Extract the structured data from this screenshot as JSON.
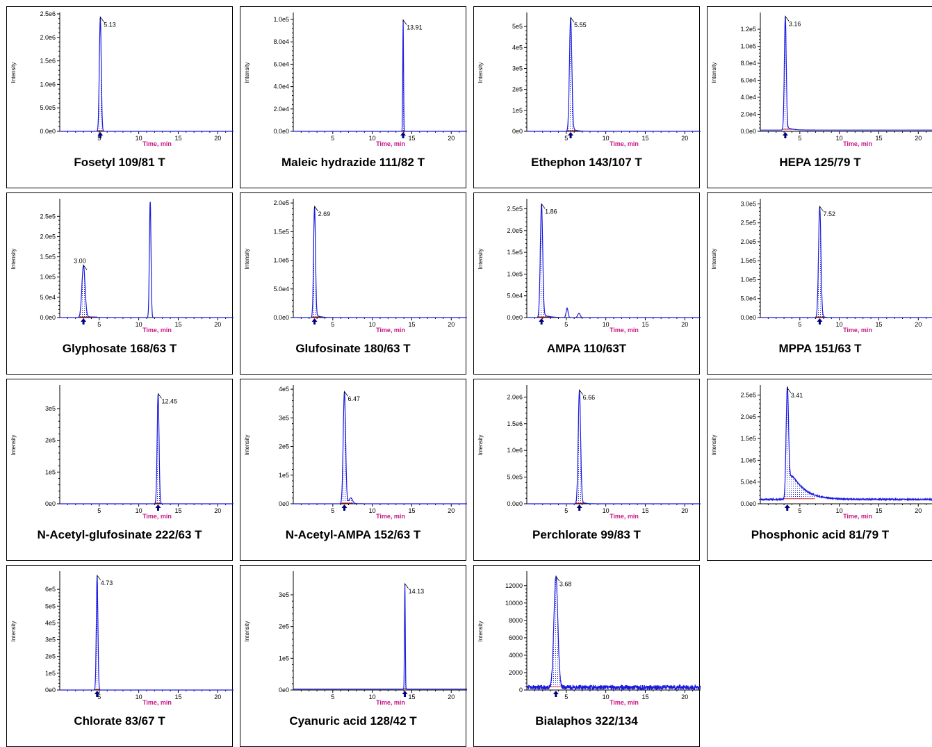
{
  "axis_labels": {
    "x": "Time, min",
    "y": "Intensity"
  },
  "colors": {
    "trace": "#1a1adf",
    "baseline": "#e03030",
    "marker": "#00007a",
    "xlabel": "#c71585"
  },
  "chart_data": [
    {
      "type": "line",
      "title": "Fosetyl  109/81 T",
      "xlim": [
        0,
        22
      ],
      "xticks": [
        5,
        10,
        15,
        20
      ],
      "ylim": [
        0,
        2500000
      ],
      "yticks": [
        {
          "v": 0,
          "l": "0.0e0"
        },
        {
          "v": 500000,
          "l": "5.0e5"
        },
        {
          "v": 1000000,
          "l": "1.0e6"
        },
        {
          "v": 1500000,
          "l": "1.5e6"
        },
        {
          "v": 2000000,
          "l": "2.0e6"
        },
        {
          "v": 2500000,
          "l": "2.5e6"
        }
      ],
      "peaks": [
        {
          "rt": 5.13,
          "h": 2420000,
          "w": 0.12,
          "label": "5.13",
          "shade": true
        }
      ],
      "baseline": 0,
      "noise": 0
    },
    {
      "type": "line",
      "title": "Maleic hydrazide 111/82 T",
      "xlim": [
        0,
        22
      ],
      "xticks": [
        5,
        10,
        15,
        20
      ],
      "ylim": [
        0,
        105000
      ],
      "yticks": [
        {
          "v": 0,
          "l": "0.0e0"
        },
        {
          "v": 20000,
          "l": "2.0e4"
        },
        {
          "v": 40000,
          "l": "4.0e4"
        },
        {
          "v": 60000,
          "l": "6.0e4"
        },
        {
          "v": 80000,
          "l": "8.0e4"
        },
        {
          "v": 100000,
          "l": "1.0e5"
        }
      ],
      "peaks": [
        {
          "rt": 13.91,
          "h": 99000,
          "w": 0.05,
          "label": "13.91",
          "shade": true
        }
      ],
      "baseline": 0,
      "noise": 0
    },
    {
      "type": "line",
      "title": "Ethephon 143/107 T",
      "xlim": [
        0,
        22
      ],
      "xticks": [
        5,
        10,
        15,
        20
      ],
      "ylim": [
        0,
        560000
      ],
      "yticks": [
        {
          "v": 0,
          "l": "0e0"
        },
        {
          "v": 100000,
          "l": "1e5"
        },
        {
          "v": 200000,
          "l": "2e5"
        },
        {
          "v": 300000,
          "l": "3e5"
        },
        {
          "v": 400000,
          "l": "4e5"
        },
        {
          "v": 500000,
          "l": "5e5"
        }
      ],
      "peaks": [
        {
          "rt": 5.55,
          "h": 540000,
          "w": 0.15,
          "label": "5.55",
          "shade": true,
          "tail": 0.5
        }
      ],
      "baseline": 0,
      "noise": 0
    },
    {
      "type": "line",
      "title": "HEPA 125/79 T",
      "xlim": [
        0,
        22
      ],
      "xticks": [
        5,
        10,
        15,
        20
      ],
      "ylim": [
        0,
        138000
      ],
      "yticks": [
        {
          "v": 0,
          "l": "0.0e0"
        },
        {
          "v": 20000,
          "l": "2.0e4"
        },
        {
          "v": 40000,
          "l": "4.0e4"
        },
        {
          "v": 60000,
          "l": "6.0e4"
        },
        {
          "v": 80000,
          "l": "8.0e4"
        },
        {
          "v": 100000,
          "l": "1.0e5"
        },
        {
          "v": 120000,
          "l": "1.2e5"
        }
      ],
      "peaks": [
        {
          "rt": 3.16,
          "h": 133000,
          "w": 0.12,
          "label": "3.16",
          "shade": true,
          "tail": 0.6
        }
      ],
      "baseline": 1500,
      "noise": 0
    },
    {
      "type": "line",
      "title": "Glyphosate 168/63 T",
      "xlim": [
        0,
        22
      ],
      "xticks": [
        5,
        10,
        15,
        20
      ],
      "ylim": [
        0,
        290000
      ],
      "yticks": [
        {
          "v": 0,
          "l": "0.0e0"
        },
        {
          "v": 50000,
          "l": "5.0e4"
        },
        {
          "v": 100000,
          "l": "1.0e5"
        },
        {
          "v": 150000,
          "l": "1.5e5"
        },
        {
          "v": 200000,
          "l": "2.0e5"
        },
        {
          "v": 250000,
          "l": "2.5e5"
        }
      ],
      "peaks": [
        {
          "rt": 3.0,
          "h": 128000,
          "w": 0.2,
          "label": "3.00",
          "shade": true,
          "tail": 0.8
        },
        {
          "rt": 11.45,
          "h": 287000,
          "w": 0.1,
          "label": "",
          "shade": false
        }
      ],
      "baseline": 0,
      "noise": 0
    },
    {
      "type": "line",
      "title": "Glufosinate  180/63 T",
      "xlim": [
        0,
        22
      ],
      "xticks": [
        5,
        10,
        15,
        20
      ],
      "ylim": [
        0,
        205000
      ],
      "yticks": [
        {
          "v": 0,
          "l": "0.0e0"
        },
        {
          "v": 50000,
          "l": "5.0e4"
        },
        {
          "v": 100000,
          "l": "1.0e5"
        },
        {
          "v": 150000,
          "l": "1.5e5"
        },
        {
          "v": 200000,
          "l": "2.0e5"
        }
      ],
      "peaks": [
        {
          "rt": 2.69,
          "h": 193000,
          "w": 0.12,
          "label": "2.69",
          "shade": true,
          "tail": 0.5
        }
      ],
      "baseline": 0,
      "noise": 0
    },
    {
      "type": "line",
      "title": "AMPA 110/63T",
      "xlim": [
        0,
        22
      ],
      "xticks": [
        5,
        10,
        15,
        20
      ],
      "ylim": [
        0,
        270000
      ],
      "yticks": [
        {
          "v": 0,
          "l": "0.0e0"
        },
        {
          "v": 50000,
          "l": "5.0e4"
        },
        {
          "v": 100000,
          "l": "1.0e5"
        },
        {
          "v": 150000,
          "l": "1.5e5"
        },
        {
          "v": 200000,
          "l": "2.0e5"
        },
        {
          "v": 250000,
          "l": "2.5e5"
        }
      ],
      "peaks": [
        {
          "rt": 1.86,
          "h": 260000,
          "w": 0.15,
          "label": "1.86",
          "shade": true,
          "tail": 0.7
        },
        {
          "rt": 5.1,
          "h": 22000,
          "w": 0.12,
          "label": "",
          "shade": false
        },
        {
          "rt": 6.6,
          "h": 10000,
          "w": 0.15,
          "label": "",
          "shade": false
        }
      ],
      "baseline": 0,
      "noise": 0
    },
    {
      "type": "line",
      "title": "MPPA 151/63 T",
      "xlim": [
        0,
        22
      ],
      "xticks": [
        5,
        10,
        15,
        20
      ],
      "ylim": [
        0,
        310000
      ],
      "yticks": [
        {
          "v": 0,
          "l": "0.0e0"
        },
        {
          "v": 50000,
          "l": "5.0e4"
        },
        {
          "v": 100000,
          "l": "1.0e5"
        },
        {
          "v": 150000,
          "l": "1.5e5"
        },
        {
          "v": 200000,
          "l": "2.0e5"
        },
        {
          "v": 250000,
          "l": "2.5e5"
        },
        {
          "v": 300000,
          "l": "3.0e5"
        }
      ],
      "peaks": [
        {
          "rt": 7.52,
          "h": 292000,
          "w": 0.15,
          "label": "7.52",
          "shade": true,
          "tail": 0.3
        }
      ],
      "baseline": 0,
      "noise": 0
    },
    {
      "type": "line",
      "title": "N-Acetyl-glufosinate 222/63 T",
      "xlim": [
        0,
        22
      ],
      "xticks": [
        5,
        10,
        15,
        20
      ],
      "ylim": [
        0,
        370000
      ],
      "yticks": [
        {
          "v": 0,
          "l": "0e0"
        },
        {
          "v": 100000,
          "l": "1e5"
        },
        {
          "v": 200000,
          "l": "2e5"
        },
        {
          "v": 300000,
          "l": "3e5"
        }
      ],
      "peaks": [
        {
          "rt": 12.45,
          "h": 345000,
          "w": 0.12,
          "label": "12.45",
          "shade": true
        }
      ],
      "baseline": 0,
      "noise": 0
    },
    {
      "type": "line",
      "title": "N-Acetyl-AMPA 152/63 T",
      "xlim": [
        0,
        22
      ],
      "xticks": [
        5,
        10,
        15,
        20
      ],
      "ylim": [
        0,
        410000
      ],
      "yticks": [
        {
          "v": 0,
          "l": "0e0"
        },
        {
          "v": 100000,
          "l": "1e5"
        },
        {
          "v": 200000,
          "l": "2e5"
        },
        {
          "v": 300000,
          "l": "3e5"
        },
        {
          "v": 400000,
          "l": "4e5"
        }
      ],
      "peaks": [
        {
          "rt": 6.47,
          "h": 390000,
          "w": 0.15,
          "label": "6.47",
          "shade": true,
          "tail": 0.5
        },
        {
          "rt": 7.3,
          "h": 18000,
          "w": 0.2,
          "label": "",
          "shade": false
        }
      ],
      "baseline": 0,
      "noise": 0
    },
    {
      "type": "line",
      "title": "Perchlorate 99/83 T",
      "xlim": [
        0,
        22
      ],
      "xticks": [
        5,
        10,
        15,
        20
      ],
      "ylim": [
        0,
        2200000
      ],
      "yticks": [
        {
          "v": 0,
          "l": "0.0e0"
        },
        {
          "v": 500000,
          "l": "5.0e5"
        },
        {
          "v": 1000000,
          "l": "1.0e6"
        },
        {
          "v": 1500000,
          "l": "1.5e6"
        },
        {
          "v": 2000000,
          "l": "2.0e6"
        }
      ],
      "peaks": [
        {
          "rt": 6.66,
          "h": 2120000,
          "w": 0.15,
          "label": "6.66",
          "shade": true,
          "tail": 0.4
        }
      ],
      "baseline": 0,
      "noise": 0
    },
    {
      "type": "line",
      "title": "Phosphonic acid 81/79 T",
      "xlim": [
        0,
        22
      ],
      "xticks": [
        5,
        10,
        15,
        20
      ],
      "ylim": [
        0,
        270000
      ],
      "yticks": [
        {
          "v": 0,
          "l": "0.0e0"
        },
        {
          "v": 50000,
          "l": "5.0e4"
        },
        {
          "v": 100000,
          "l": "1.0e5"
        },
        {
          "v": 150000,
          "l": "1.5e5"
        },
        {
          "v": 200000,
          "l": "2.0e5"
        },
        {
          "v": 250000,
          "l": "2.5e5"
        }
      ],
      "peaks": [
        {
          "rt": 3.41,
          "h": 255000,
          "w": 0.15,
          "label": "3.41",
          "shade": true,
          "tail": 1.6,
          "tailfrac": 0.35
        }
      ],
      "baseline": 10000,
      "noise": 1500
    },
    {
      "type": "line",
      "title": "Chlorate 83/67 T",
      "xlim": [
        0,
        22
      ],
      "xticks": [
        5,
        10,
        15,
        20
      ],
      "ylim": [
        0,
        700000
      ],
      "yticks": [
        {
          "v": 0,
          "l": "0e0"
        },
        {
          "v": 100000,
          "l": "1e5"
        },
        {
          "v": 200000,
          "l": "2e5"
        },
        {
          "v": 300000,
          "l": "3e5"
        },
        {
          "v": 400000,
          "l": "4e5"
        },
        {
          "v": 500000,
          "l": "5e5"
        },
        {
          "v": 600000,
          "l": "6e5"
        }
      ],
      "peaks": [
        {
          "rt": 4.73,
          "h": 680000,
          "w": 0.1,
          "label": "4.73",
          "shade": true
        }
      ],
      "baseline": 0,
      "noise": 0
    },
    {
      "type": "line",
      "title": "Cyanuric acid 128/42 T",
      "xlim": [
        0,
        22
      ],
      "xticks": [
        5,
        10,
        15,
        20
      ],
      "ylim": [
        0,
        370000
      ],
      "yticks": [
        {
          "v": 0,
          "l": "0e0"
        },
        {
          "v": 100000,
          "l": "1e5"
        },
        {
          "v": 200000,
          "l": "2e5"
        },
        {
          "v": 300000,
          "l": "3e5"
        }
      ],
      "peaks": [
        {
          "rt": 14.13,
          "h": 330000,
          "w": 0.05,
          "label": "14.13",
          "shade": true
        }
      ],
      "baseline": 3000,
      "noise": 0
    },
    {
      "type": "line",
      "title": "Bialaphos 322/134",
      "xlim": [
        0,
        22
      ],
      "xticks": [
        5,
        10,
        15,
        20
      ],
      "ylim": [
        0,
        13500
      ],
      "yticks": [
        {
          "v": 0,
          "l": "0"
        },
        {
          "v": 2000,
          "l": "2000"
        },
        {
          "v": 4000,
          "l": "4000"
        },
        {
          "v": 6000,
          "l": "6000"
        },
        {
          "v": 8000,
          "l": "8000"
        },
        {
          "v": 10000,
          "l": "10000"
        },
        {
          "v": 12000,
          "l": "12000"
        }
      ],
      "peaks": [
        {
          "rt": 3.68,
          "h": 12700,
          "w": 0.25,
          "label": "3.68",
          "shade": true
        }
      ],
      "baseline": 300,
      "noise": 250
    }
  ]
}
